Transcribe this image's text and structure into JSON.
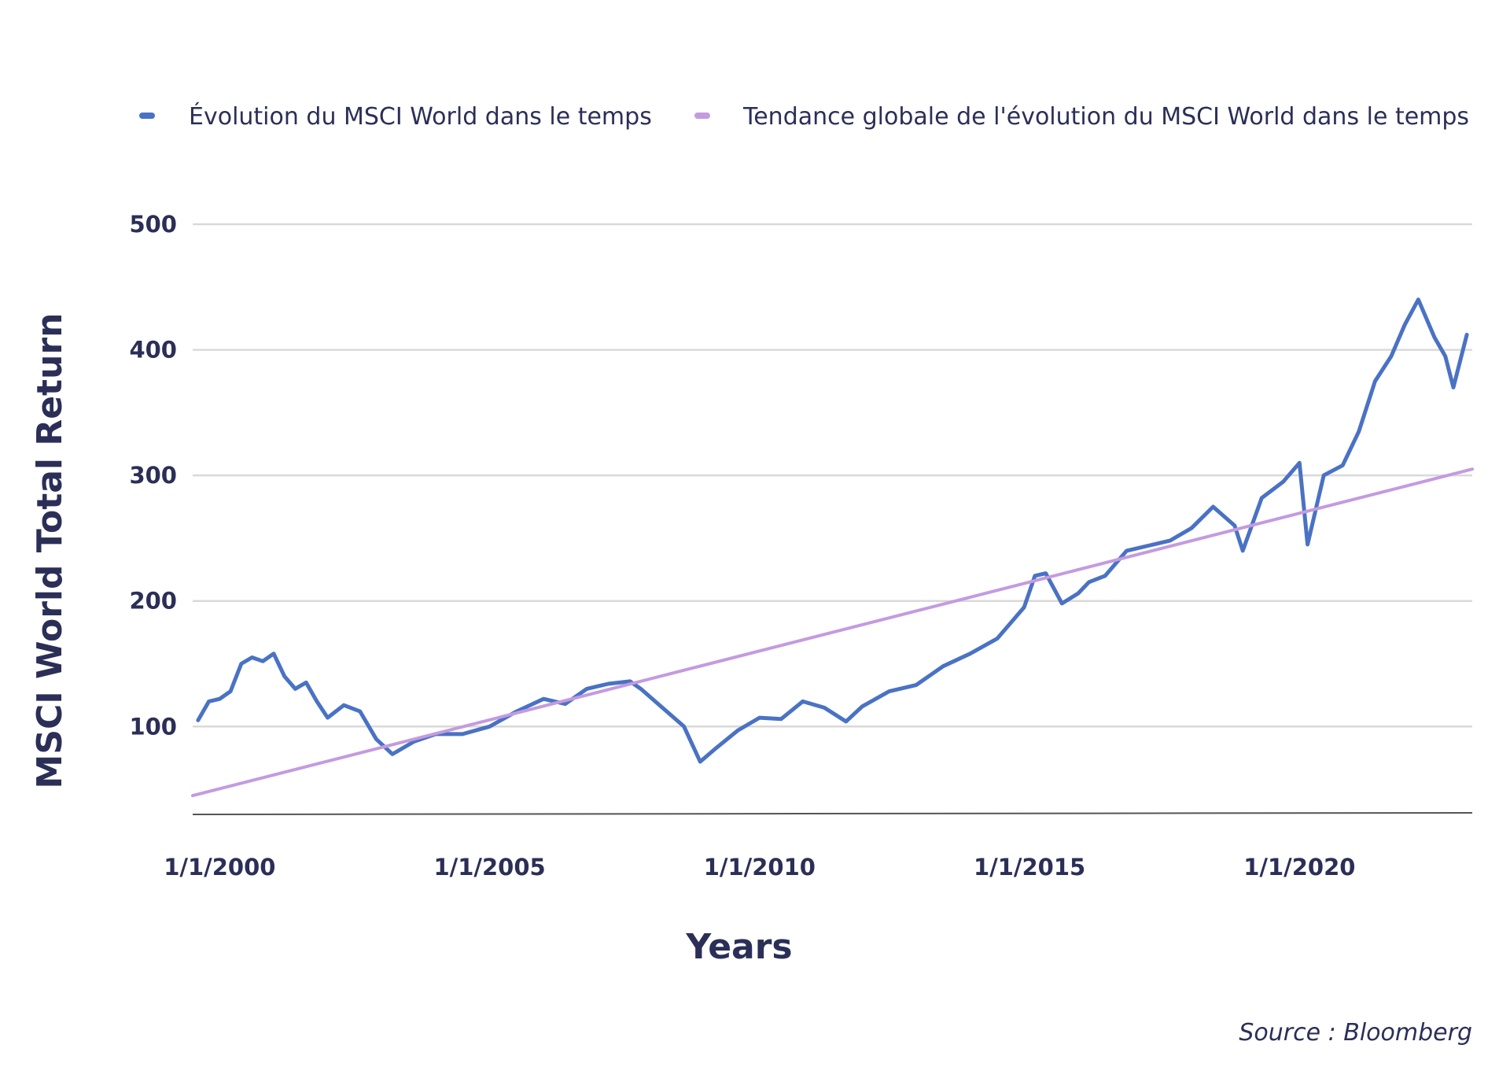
{
  "chart_data": {
    "type": "line",
    "title": "",
    "xlabel": "Years",
    "ylabel": "MSCI World Total Return",
    "source": "Source : Bloomberg",
    "xlim": [
      1999.5,
      2023.2
    ],
    "ylim": [
      30,
      500
    ],
    "yticks": [
      100,
      200,
      300,
      400,
      500
    ],
    "ytick_labels": [
      "100",
      "200",
      "300",
      "400",
      "500"
    ],
    "xticks": [
      2000,
      2005,
      2010,
      2015,
      2020
    ],
    "xtick_labels": [
      "1/1/2000",
      "1/1/2005",
      "1/1/2010",
      "1/1/2015",
      "1/1/2020"
    ],
    "grid": true,
    "legend_position": "top",
    "colors": {
      "series": "#4a72c4",
      "trend": "#c39be0",
      "grid": "#d9d9d9",
      "axis": "#555555",
      "text": "#2b2f57"
    },
    "series": [
      {
        "name": "Évolution du MSCI World dans le temps",
        "color": "#4a72c4",
        "x": [
          1999.6,
          1999.8,
          2000.0,
          2000.2,
          2000.4,
          2000.6,
          2000.8,
          2001.0,
          2001.2,
          2001.4,
          2001.6,
          2001.8,
          2002.0,
          2002.3,
          2002.6,
          2002.9,
          2003.2,
          2003.6,
          2004.0,
          2004.5,
          2005.0,
          2005.5,
          2006.0,
          2006.4,
          2006.8,
          2007.2,
          2007.6,
          2007.8,
          2008.2,
          2008.6,
          2008.9,
          2009.2,
          2009.6,
          2010.0,
          2010.4,
          2010.8,
          2011.2,
          2011.6,
          2011.9,
          2012.4,
          2012.9,
          2013.4,
          2013.9,
          2014.4,
          2014.9,
          2015.1,
          2015.3,
          2015.6,
          2015.9,
          2016.1,
          2016.4,
          2016.8,
          2017.2,
          2017.6,
          2018.0,
          2018.4,
          2018.8,
          2018.95,
          2019.3,
          2019.7,
          2020.0,
          2020.15,
          2020.45,
          2020.8,
          2021.1,
          2021.4,
          2021.7,
          2021.95,
          2022.2,
          2022.5,
          2022.7,
          2022.85,
          2023.1
        ],
        "values": [
          105,
          120,
          122,
          128,
          150,
          155,
          152,
          158,
          140,
          130,
          135,
          120,
          107,
          117,
          112,
          90,
          78,
          88,
          94,
          94,
          100,
          112,
          122,
          118,
          130,
          134,
          136,
          130,
          115,
          100,
          72,
          83,
          97,
          107,
          106,
          120,
          115,
          104,
          116,
          128,
          133,
          148,
          158,
          170,
          195,
          220,
          222,
          198,
          206,
          215,
          220,
          240,
          244,
          248,
          258,
          275,
          260,
          240,
          282,
          295,
          310,
          245,
          300,
          308,
          335,
          375,
          395,
          420,
          440,
          410,
          395,
          370,
          412
        ]
      },
      {
        "name": "Tendance globale de l'évolution du MSCI World dans le temps",
        "color": "#c39be0",
        "x": [
          1999.5,
          2023.2
        ],
        "values": [
          45,
          305
        ]
      }
    ]
  }
}
